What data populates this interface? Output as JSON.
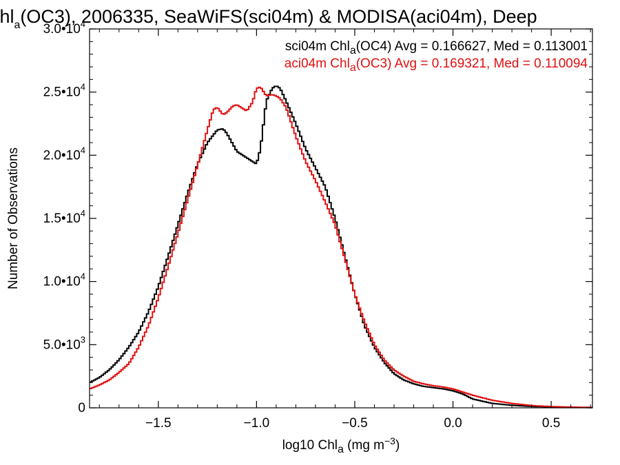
{
  "chart_data": {
    "type": "line",
    "title": {
      "pre": "Chl",
      "sub": "a",
      "post": "(OC3), 2006335, SeaWiFS(sci04m) & MODISA(aci04m), Deep"
    },
    "xlabel": {
      "pre": "log10 Chl",
      "sub": "a",
      "mid": " (mg m",
      "sup": "−3",
      "post": ")"
    },
    "ylabel": "Number of Observations",
    "xlim": [
      -1.85,
      0.71
    ],
    "ylim": [
      0,
      30000
    ],
    "x_ticks": [
      {
        "value": -1.5,
        "label": "−1.5"
      },
      {
        "value": -1.0,
        "label": "−1.0"
      },
      {
        "value": -0.5,
        "label": "−0.5"
      },
      {
        "value": 0.0,
        "label": "0.0"
      },
      {
        "value": 0.5,
        "label": "0.5"
      }
    ],
    "y_ticks": [
      {
        "value": 0,
        "base": "0",
        "exp": ""
      },
      {
        "value": 5000,
        "base": "5.0•10",
        "exp": "3"
      },
      {
        "value": 10000,
        "base": "1.0•10",
        "exp": "4"
      },
      {
        "value": 15000,
        "base": "1.5•10",
        "exp": "4"
      },
      {
        "value": 20000,
        "base": "2.0•10",
        "exp": "4"
      },
      {
        "value": 25000,
        "base": "2.5•10",
        "exp": "4"
      },
      {
        "value": 30000,
        "base": "3.0•10",
        "exp": "4"
      }
    ],
    "grid": false,
    "legend_position": "top-right",
    "series": [
      {
        "name": "sci04m",
        "legend": {
          "pre": "sci04m Chl",
          "sub": "a",
          "post": "(OC4) Avg = 0.166627, Med = 0.113001"
        },
        "color": "#000000",
        "x": [
          -1.85,
          -1.8,
          -1.75,
          -1.7,
          -1.65,
          -1.6,
          -1.55,
          -1.5,
          -1.45,
          -1.4,
          -1.35,
          -1.3,
          -1.25,
          -1.2,
          -1.17,
          -1.15,
          -1.1,
          -1.05,
          -1.0,
          -0.98,
          -0.95,
          -0.92,
          -0.9,
          -0.88,
          -0.85,
          -0.8,
          -0.75,
          -0.7,
          -0.65,
          -0.6,
          -0.55,
          -0.5,
          -0.45,
          -0.4,
          -0.35,
          -0.3,
          -0.25,
          -0.2,
          -0.15,
          -0.1,
          -0.05,
          0.0,
          0.05,
          0.1,
          0.2,
          0.3,
          0.4,
          0.5,
          0.6,
          0.71
        ],
        "values": [
          2000,
          2400,
          3000,
          3800,
          4800,
          6000,
          7600,
          9600,
          12000,
          14500,
          17000,
          19300,
          21000,
          22000,
          22100,
          21700,
          20300,
          19800,
          19300,
          20500,
          24300,
          25300,
          25500,
          25300,
          24300,
          22500,
          20500,
          19000,
          17500,
          15000,
          12000,
          9000,
          6500,
          4800,
          3600,
          2700,
          2200,
          1900,
          1700,
          1600,
          1500,
          1350,
          1100,
          700,
          350,
          200,
          110,
          70,
          40,
          20
        ]
      },
      {
        "name": "aci04m",
        "legend": {
          "pre": "aci04m Chl",
          "sub": "a",
          "post": "(OC3) Avg = 0.169321, Med = 0.110094"
        },
        "color": "#e01010",
        "x": [
          -1.85,
          -1.8,
          -1.75,
          -1.7,
          -1.65,
          -1.6,
          -1.55,
          -1.5,
          -1.45,
          -1.4,
          -1.35,
          -1.3,
          -1.25,
          -1.22,
          -1.2,
          -1.17,
          -1.15,
          -1.12,
          -1.1,
          -1.05,
          -1.02,
          -1.0,
          -0.98,
          -0.95,
          -0.92,
          -0.9,
          -0.88,
          -0.85,
          -0.8,
          -0.75,
          -0.7,
          -0.65,
          -0.6,
          -0.55,
          -0.5,
          -0.45,
          -0.4,
          -0.35,
          -0.3,
          -0.25,
          -0.2,
          -0.15,
          -0.1,
          -0.05,
          0.0,
          0.05,
          0.1,
          0.2,
          0.3,
          0.4,
          0.5,
          0.6,
          0.71
        ],
        "values": [
          1500,
          1800,
          2200,
          2800,
          3500,
          4800,
          6500,
          8700,
          11200,
          13800,
          16500,
          19200,
          22000,
          23600,
          23800,
          23200,
          23400,
          23900,
          24000,
          23500,
          24200,
          25300,
          25400,
          24700,
          24800,
          24700,
          24500,
          23800,
          21500,
          19500,
          18000,
          16300,
          14500,
          11800,
          9000,
          6800,
          5000,
          3800,
          3000,
          2500,
          2100,
          1900,
          1750,
          1650,
          1500,
          1250,
          1000,
          600,
          350,
          180,
          100,
          60,
          30
        ]
      }
    ]
  }
}
